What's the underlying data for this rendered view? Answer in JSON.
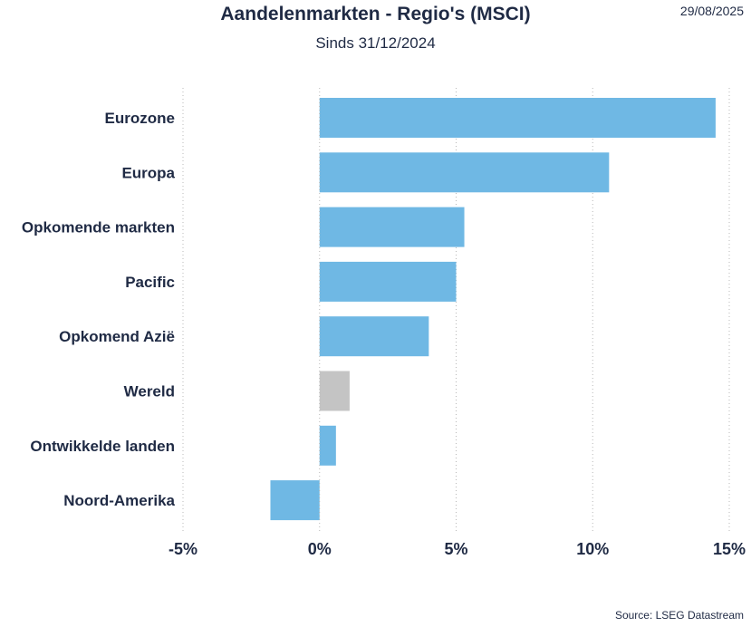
{
  "header": {
    "title": "Aandelenmarkten - Regio's (MSCI)",
    "subtitle": "Sinds 31/12/2024",
    "date": "29/08/2025"
  },
  "footer": {
    "source": "Source: LSEG Datastream"
  },
  "colors": {
    "bar": "#6fb8e4",
    "highlight": "#c4c4c4",
    "grid": "#b8b8b8",
    "text": "#1f2a44"
  },
  "chart_data": {
    "type": "bar",
    "orientation": "horizontal",
    "title": "Aandelenmarkten - Regio's (MSCI)",
    "subtitle": "Sinds 31/12/2024",
    "categories": [
      "Eurozone",
      "Europa",
      "Opkomende markten",
      "Pacific",
      "Opkomend Azië",
      "Wereld",
      "Ontwikkelde landen",
      "Noord-Amerika"
    ],
    "values": [
      14.5,
      10.6,
      5.3,
      5.0,
      4.0,
      1.1,
      0.6,
      -1.8
    ],
    "highlight_category": "Wereld",
    "xlim": [
      -5,
      15
    ],
    "xticks": [
      -5,
      0,
      5,
      10,
      15
    ],
    "xtick_labels": [
      "-5%",
      "0%",
      "5%",
      "10%",
      "15%"
    ],
    "unit": "%",
    "grid": "vertical-dotted",
    "legend": "none"
  }
}
